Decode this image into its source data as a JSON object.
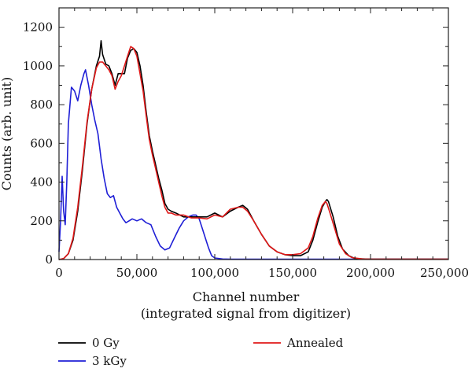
{
  "chart_data": {
    "type": "line",
    "xlabel": "Channel number",
    "xlabel_line2": "(integrated signal from digitizer)",
    "ylabel": "Counts (arb. unit)",
    "xlim": [
      0,
      250000
    ],
    "ylim": [
      0,
      1300
    ],
    "x_ticks": [
      0,
      50000,
      100000,
      150000,
      200000,
      250000
    ],
    "x_tick_labels": [
      "0",
      "50,000",
      "100,000",
      "150,000",
      "200,000",
      "250,000"
    ],
    "y_ticks": [
      0,
      200,
      400,
      600,
      800,
      1000,
      1200
    ],
    "y_tick_labels": [
      "0",
      "200",
      "400",
      "600",
      "800",
      "1000",
      "1200"
    ],
    "grid": false,
    "legend_position": "bottom",
    "series": [
      {
        "name": "0 Gy",
        "color": "#000000",
        "points": [
          [
            0,
            0
          ],
          [
            3000,
            5
          ],
          [
            6000,
            30
          ],
          [
            9000,
            100
          ],
          [
            12000,
            250
          ],
          [
            15000,
            460
          ],
          [
            18000,
            700
          ],
          [
            21000,
            880
          ],
          [
            24000,
            1000
          ],
          [
            26000,
            1050
          ],
          [
            27000,
            1130
          ],
          [
            28000,
            1060
          ],
          [
            30000,
            1010
          ],
          [
            32000,
            1000
          ],
          [
            34000,
            960
          ],
          [
            36000,
            900
          ],
          [
            38000,
            960
          ],
          [
            40000,
            960
          ],
          [
            42000,
            960
          ],
          [
            44000,
            1040
          ],
          [
            46000,
            1080
          ],
          [
            48000,
            1090
          ],
          [
            50000,
            1070
          ],
          [
            52000,
            1000
          ],
          [
            54000,
            900
          ],
          [
            56000,
            760
          ],
          [
            58000,
            640
          ],
          [
            60000,
            560
          ],
          [
            62000,
            490
          ],
          [
            64000,
            420
          ],
          [
            66000,
            360
          ],
          [
            68000,
            290
          ],
          [
            70000,
            260
          ],
          [
            72000,
            250
          ],
          [
            75000,
            240
          ],
          [
            80000,
            220
          ],
          [
            85000,
            220
          ],
          [
            90000,
            220
          ],
          [
            95000,
            220
          ],
          [
            100000,
            240
          ],
          [
            105000,
            220
          ],
          [
            110000,
            250
          ],
          [
            115000,
            270
          ],
          [
            118000,
            280
          ],
          [
            121000,
            260
          ],
          [
            125000,
            200
          ],
          [
            130000,
            130
          ],
          [
            135000,
            70
          ],
          [
            140000,
            40
          ],
          [
            145000,
            25
          ],
          [
            150000,
            20
          ],
          [
            155000,
            20
          ],
          [
            160000,
            40
          ],
          [
            163000,
            100
          ],
          [
            166000,
            190
          ],
          [
            169000,
            270
          ],
          [
            171000,
            300
          ],
          [
            172000,
            310
          ],
          [
            173000,
            300
          ],
          [
            176000,
            220
          ],
          [
            179000,
            120
          ],
          [
            182000,
            55
          ],
          [
            186000,
            20
          ],
          [
            190000,
            5
          ],
          [
            200000,
            2
          ],
          [
            250000,
            2
          ]
        ]
      },
      {
        "name": "3 kGy",
        "color": "#1f1fd6",
        "points": [
          [
            0,
            40
          ],
          [
            1000,
            200
          ],
          [
            2000,
            430
          ],
          [
            3000,
            250
          ],
          [
            4000,
            180
          ],
          [
            5000,
            400
          ],
          [
            6000,
            700
          ],
          [
            8000,
            890
          ],
          [
            10000,
            870
          ],
          [
            12000,
            820
          ],
          [
            14000,
            900
          ],
          [
            16000,
            960
          ],
          [
            17000,
            980
          ],
          [
            19000,
            900
          ],
          [
            21000,
            800
          ],
          [
            23000,
            720
          ],
          [
            25000,
            650
          ],
          [
            27000,
            520
          ],
          [
            29000,
            420
          ],
          [
            31000,
            340
          ],
          [
            33000,
            320
          ],
          [
            35000,
            330
          ],
          [
            37000,
            270
          ],
          [
            39000,
            240
          ],
          [
            41000,
            210
          ],
          [
            43000,
            190
          ],
          [
            45000,
            200
          ],
          [
            47000,
            210
          ],
          [
            50000,
            200
          ],
          [
            53000,
            210
          ],
          [
            56000,
            190
          ],
          [
            59000,
            180
          ],
          [
            62000,
            120
          ],
          [
            65000,
            70
          ],
          [
            68000,
            50
          ],
          [
            71000,
            60
          ],
          [
            74000,
            110
          ],
          [
            77000,
            160
          ],
          [
            80000,
            200
          ],
          [
            83000,
            220
          ],
          [
            86000,
            230
          ],
          [
            88000,
            230
          ],
          [
            90000,
            210
          ],
          [
            92000,
            160
          ],
          [
            94000,
            110
          ],
          [
            96000,
            60
          ],
          [
            98000,
            20
          ],
          [
            100000,
            8
          ],
          [
            105000,
            3
          ],
          [
            110000,
            2
          ],
          [
            150000,
            2
          ],
          [
            160000,
            2
          ],
          [
            250000,
            2
          ]
        ]
      },
      {
        "name": "Annealed",
        "color": "#e01818",
        "points": [
          [
            0,
            0
          ],
          [
            3000,
            5
          ],
          [
            6000,
            30
          ],
          [
            9000,
            110
          ],
          [
            12000,
            270
          ],
          [
            15000,
            480
          ],
          [
            18000,
            710
          ],
          [
            21000,
            880
          ],
          [
            24000,
            990
          ],
          [
            26000,
            1020
          ],
          [
            28000,
            1020
          ],
          [
            30000,
            1000
          ],
          [
            32000,
            980
          ],
          [
            34000,
            950
          ],
          [
            36000,
            880
          ],
          [
            38000,
            920
          ],
          [
            40000,
            950
          ],
          [
            42000,
            1000
          ],
          [
            44000,
            1050
          ],
          [
            46000,
            1100
          ],
          [
            48000,
            1090
          ],
          [
            50000,
            1050
          ],
          [
            52000,
            960
          ],
          [
            54000,
            870
          ],
          [
            56000,
            740
          ],
          [
            58000,
            620
          ],
          [
            60000,
            540
          ],
          [
            62000,
            470
          ],
          [
            64000,
            400
          ],
          [
            66000,
            330
          ],
          [
            68000,
            270
          ],
          [
            70000,
            240
          ],
          [
            72000,
            240
          ],
          [
            75000,
            230
          ],
          [
            80000,
            230
          ],
          [
            85000,
            215
          ],
          [
            90000,
            215
          ],
          [
            95000,
            210
          ],
          [
            100000,
            230
          ],
          [
            105000,
            220
          ],
          [
            110000,
            260
          ],
          [
            115000,
            270
          ],
          [
            118000,
            270
          ],
          [
            121000,
            250
          ],
          [
            125000,
            200
          ],
          [
            130000,
            130
          ],
          [
            135000,
            70
          ],
          [
            140000,
            40
          ],
          [
            145000,
            25
          ],
          [
            150000,
            25
          ],
          [
            155000,
            30
          ],
          [
            160000,
            60
          ],
          [
            163000,
            120
          ],
          [
            166000,
            210
          ],
          [
            169000,
            280
          ],
          [
            171000,
            300
          ],
          [
            172000,
            290
          ],
          [
            174000,
            240
          ],
          [
            177000,
            160
          ],
          [
            180000,
            80
          ],
          [
            184000,
            30
          ],
          [
            188000,
            10
          ],
          [
            195000,
            3
          ],
          [
            200000,
            2
          ],
          [
            250000,
            2
          ]
        ]
      }
    ]
  }
}
